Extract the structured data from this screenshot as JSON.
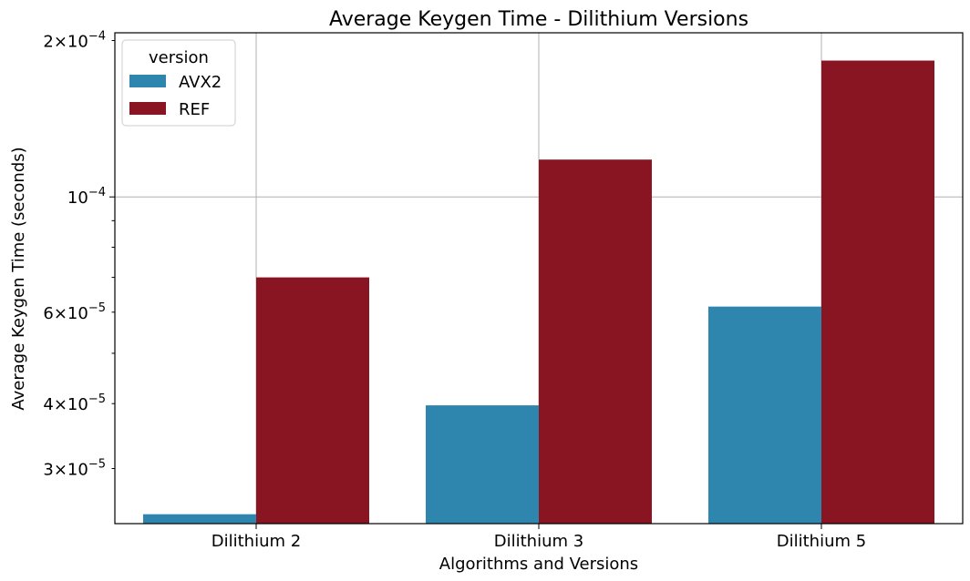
{
  "chart_data": {
    "type": "bar",
    "title": "Average Keygen Time - Dilithium Versions",
    "xlabel": "Algorithms and Versions",
    "ylabel": "Average Keygen Time (seconds)",
    "yscale": "log",
    "ylim": [
      2.35e-05,
      0.000207
    ],
    "categories": [
      "Dilithium 2",
      "Dilithium 3",
      "Dilithium 5"
    ],
    "series": [
      {
        "name": "AVX2",
        "color": "#2e86ae",
        "values": [
          2.45e-05,
          3.97e-05,
          6.15e-05
        ]
      },
      {
        "name": "REF",
        "color": "#891523",
        "values": [
          7e-05,
          0.000118,
          0.000183
        ]
      }
    ],
    "y_major_ticks": [
      {
        "value": 0.0001,
        "base": "10",
        "exp": "−4"
      }
    ],
    "y_minor_ticks": [
      {
        "value": 3e-05,
        "mant": "3",
        "base": "10",
        "exp": "−5",
        "labeled": true
      },
      {
        "value": 4e-05,
        "mant": "4",
        "base": "10",
        "exp": "−5",
        "labeled": true
      },
      {
        "value": 5e-05,
        "labeled": false
      },
      {
        "value": 6e-05,
        "mant": "6",
        "base": "10",
        "exp": "−5",
        "labeled": true
      },
      {
        "value": 7e-05,
        "labeled": false
      },
      {
        "value": 8e-05,
        "labeled": false
      },
      {
        "value": 9e-05,
        "labeled": false
      },
      {
        "value": 0.0002,
        "mant": "2",
        "base": "10",
        "exp": "−4",
        "labeled": true
      }
    ],
    "grid": true,
    "legend": {
      "title": "version",
      "position": "top-left"
    }
  }
}
